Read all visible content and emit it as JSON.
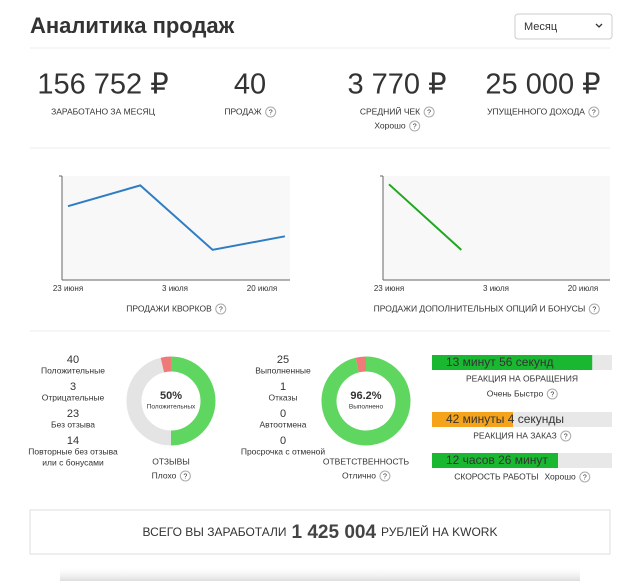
{
  "header": {
    "title": "Аналитика продаж",
    "period_select": "Месяц"
  },
  "help_icon": "?",
  "stats": [
    {
      "value": "156 752 ₽",
      "label": "ЗАРАБОТАНО ЗА МЕСЯЦ"
    },
    {
      "value": "40",
      "label": "ПРОДАЖ",
      "help": true
    },
    {
      "value": "3 770 ₽",
      "label": "СРЕДНИЙ ЧЕК",
      "rating": "Хорошо",
      "rating_color": "#2a9d2a",
      "help": true
    },
    {
      "value": "25 000 ₽",
      "label": "УПУЩЕННОГО ДОХОДА",
      "help": true
    }
  ],
  "charts": [
    {
      "type": "line",
      "title": "ПРОДАЖИ КВОРКОВ",
      "x_labels": [
        "23 июня",
        "3 июля",
        "20 июля"
      ],
      "values": [
        71,
        91,
        29,
        42
      ],
      "color": "#2f7dc4",
      "ylim": [
        0,
        100
      ]
    },
    {
      "type": "line",
      "title": "ПРОДАЖИ ДОПОЛНИТЕЛЬНЫХ ОПЦИЙ И БОНУСЫ",
      "x_labels": [
        "23 июня",
        "3 июля",
        "20 июля"
      ],
      "values": [
        92,
        29
      ],
      "color": "#1fa81f",
      "ylim": [
        0,
        100
      ]
    }
  ],
  "reviews": {
    "items": [
      {
        "value": 40,
        "label": "Положительные"
      },
      {
        "value": 3,
        "label": "Отрицательные"
      },
      {
        "value": 23,
        "label": "Без отзыва"
      },
      {
        "value": 14,
        "label": "Повторные без отзыва",
        "label2": "или с бонусами"
      }
    ],
    "donut": {
      "center_value": "50%",
      "center_label": "Положительных",
      "segments": [
        {
          "value": 50,
          "color": "#5fd65f"
        },
        {
          "value": 46.25,
          "color": "#e4e4e4"
        },
        {
          "value": 3.75,
          "color": "#f07a7a"
        }
      ]
    },
    "title": "ОТЗЫВЫ",
    "rating": "Плохо",
    "rating_color": "#e05555"
  },
  "orders": {
    "items": [
      {
        "value": 25,
        "label": "Выполненные"
      },
      {
        "value": 1,
        "label": "Отказы"
      },
      {
        "value": 0,
        "label": "Автоотмена"
      },
      {
        "value": 0,
        "label": "Просрочка с отменой"
      }
    ],
    "donut": {
      "center_value": "96.2%",
      "center_label": "Выполнено",
      "segments": [
        {
          "value": 96.2,
          "color": "#5fd65f"
        },
        {
          "value": 3.8,
          "color": "#f07a7a"
        }
      ]
    },
    "title": "ОТВЕТСТВЕННОСТЬ",
    "rating": "Отлично",
    "rating_color": "#2a9d2a"
  },
  "speed": [
    {
      "text": "13 минут 56 секунд",
      "fill": 89,
      "color": "#19b830",
      "label": "РЕАКЦИЯ НА ОБРАЩЕНИЯ",
      "rating": "Очень Быстро",
      "rating_color": "#2a9d2a"
    },
    {
      "text": "42 минуты 4 секунды",
      "fill": 45,
      "color": "#f5a31a",
      "label": "РЕАКЦИЯ НА ЗАКАЗ"
    },
    {
      "text": "12 часов 26 минут",
      "fill": 70,
      "color": "#19b830",
      "label": "СКОРОСТЬ РАБОТЫ",
      "rating": "Хорошо",
      "rating_color": "#2a9d2a"
    }
  ],
  "total": {
    "prefix": "ВСЕГО ВЫ ЗАРАБОТАЛИ",
    "amount": "1 425 004",
    "suffix": "РУБЛЕЙ НА KWORK"
  }
}
